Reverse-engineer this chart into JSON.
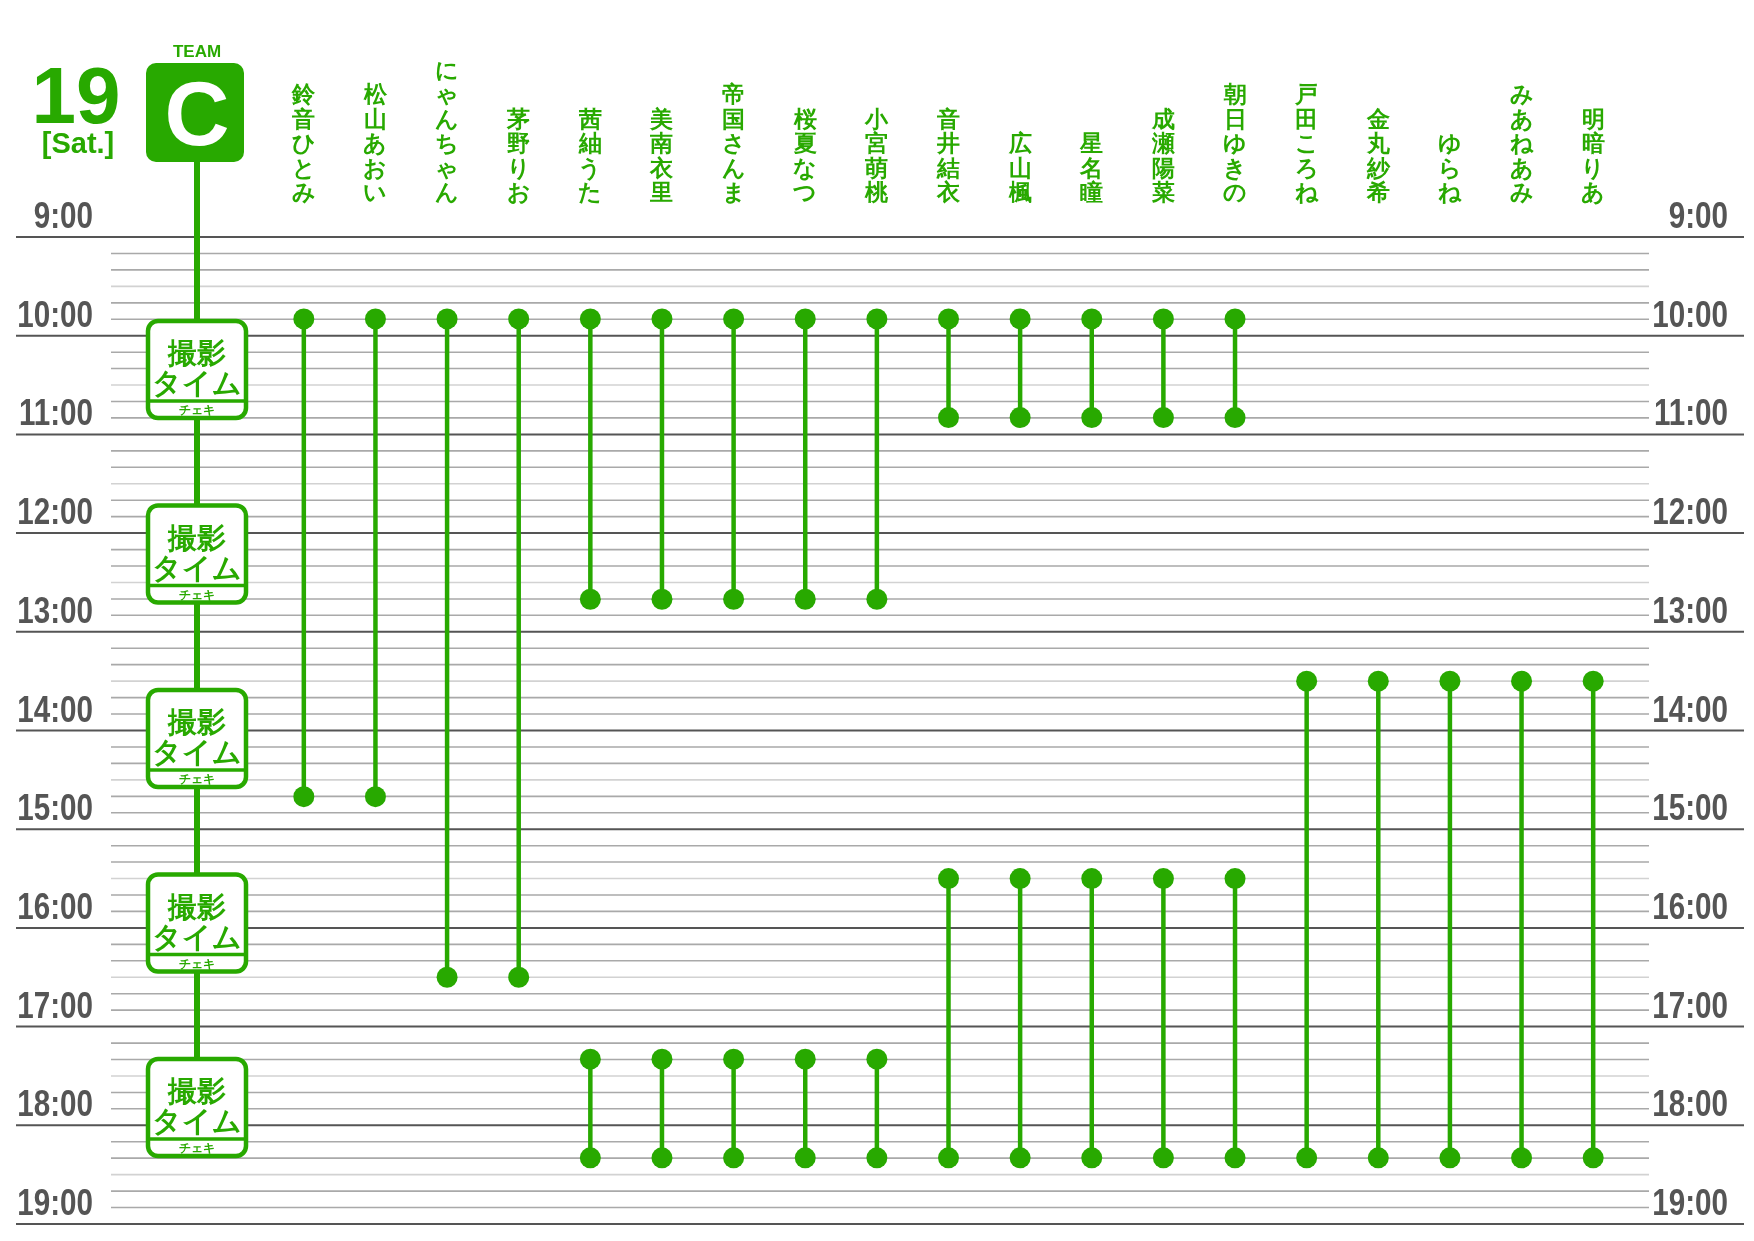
{
  "chart_data": {
    "type": "line",
    "title": "19",
    "subtitle": "[Sat.]",
    "categories": [
      "鈴音ひとみ",
      "松山あおい",
      "にゃんちゃん",
      "茅野りお",
      "茜紬うた",
      "美南衣里",
      "帝国さんま",
      "桜夏なつ",
      "小宮萌桃",
      "音井結衣",
      "広山楓",
      "星名瞳",
      "成瀬陽菜",
      "朝日ゆきの",
      "戸田ころね",
      "金丸紗希",
      "ゆらね",
      "みあねあみ",
      "明暗りあ"
    ],
    "series": [
      {
        "color": "#28a900",
        "x": [
          "鈴音ひとみ",
          "鈴音ひとみ"
        ],
        "values": [
          9.83,
          14.67
        ]
      },
      {
        "color": "#28a900",
        "x": [
          "松山あおい",
          "松山あおい"
        ],
        "values": [
          9.83,
          14.67
        ]
      },
      {
        "color": "#28a900",
        "x": [
          "にゃんちゃん",
          "にゃんちゃん"
        ],
        "values": [
          9.83,
          16.5
        ]
      },
      {
        "color": "#28a900",
        "x": [
          "茅野りお",
          "茅野りお"
        ],
        "values": [
          9.83,
          16.5
        ]
      },
      {
        "color": "#28a900",
        "x": [
          "茜紬うた",
          "茜紬うた"
        ],
        "values": [
          9.83,
          12.67
        ]
      },
      {
        "color": "#28a900",
        "x": [
          "美南衣里",
          "美南衣里"
        ],
        "values": [
          9.83,
          12.67
        ]
      },
      {
        "color": "#28a900",
        "x": [
          "帝国さんま",
          "帝国さんま"
        ],
        "values": [
          9.83,
          12.67
        ]
      },
      {
        "color": "#28a900",
        "x": [
          "桜夏なつ",
          "桜夏なつ"
        ],
        "values": [
          9.83,
          12.67
        ]
      },
      {
        "color": "#28a900",
        "x": [
          "小宮萌桃",
          "小宮萌桃"
        ],
        "values": [
          9.83,
          12.67
        ]
      },
      {
        "color": "#28a900",
        "x": [
          "音井結衣",
          "音井結衣"
        ],
        "values": [
          9.83,
          10.83
        ]
      },
      {
        "color": "#28a900",
        "x": [
          "広山楓",
          "広山楓"
        ],
        "values": [
          9.83,
          10.83
        ]
      },
      {
        "color": "#28a900",
        "x": [
          "星名瞳",
          "星名瞳"
        ],
        "values": [
          9.83,
          10.83
        ]
      },
      {
        "color": "#28a900",
        "x": [
          "成瀬陽菜",
          "成瀬陽菜"
        ],
        "values": [
          9.83,
          10.83
        ]
      },
      {
        "color": "#28a900",
        "x": [
          "朝日ゆきの",
          "朝日ゆきの"
        ],
        "values": [
          9.83,
          10.83
        ]
      },
      {
        "color": "#28a900",
        "x": [
          "戸田ころね",
          "戸田ころね"
        ],
        "values": [
          13.5,
          18.33
        ]
      },
      {
        "color": "#28a900",
        "x": [
          "金丸紗希",
          "金丸紗希"
        ],
        "values": [
          13.5,
          18.33
        ]
      },
      {
        "color": "#28a900",
        "x": [
          "ゆらね",
          "ゆらね"
        ],
        "values": [
          13.5,
          18.33
        ]
      },
      {
        "color": "#28a900",
        "x": [
          "みあねあみ",
          "みあねあみ"
        ],
        "values": [
          13.5,
          18.33
        ]
      },
      {
        "color": "#28a900",
        "x": [
          "明暗りあ",
          "明暗りあ"
        ],
        "values": [
          13.5,
          18.33
        ]
      },
      {
        "color": "#28a900",
        "x": [
          "茜紬うた",
          "茜紬うた"
        ],
        "values": [
          17.33,
          18.33
        ]
      },
      {
        "color": "#28a900",
        "x": [
          "美南衣里",
          "美南衣里"
        ],
        "values": [
          17.33,
          18.33
        ]
      },
      {
        "color": "#28a900",
        "x": [
          "帝国さんま",
          "帝国さんま"
        ],
        "values": [
          17.33,
          18.33
        ]
      },
      {
        "color": "#28a900",
        "x": [
          "桜夏なつ",
          "桜夏なつ"
        ],
        "values": [
          17.33,
          18.33
        ]
      },
      {
        "color": "#28a900",
        "x": [
          "小宮萌桃",
          "小宮萌桃"
        ],
        "values": [
          17.33,
          18.33
        ]
      },
      {
        "color": "#28a900",
        "x": [
          "音井結衣",
          "音井結衣"
        ],
        "values": [
          15.5,
          18.33
        ]
      },
      {
        "color": "#28a900",
        "x": [
          "広山楓",
          "広山楓"
        ],
        "values": [
          15.5,
          18.33
        ]
      },
      {
        "color": "#28a900",
        "x": [
          "星名瞳",
          "星名瞳"
        ],
        "values": [
          15.5,
          18.33
        ]
      },
      {
        "color": "#28a900",
        "x": [
          "成瀬陽菜",
          "成瀬陽菜"
        ],
        "values": [
          15.5,
          18.33
        ]
      },
      {
        "color": "#28a900",
        "x": [
          "朝日ゆきの",
          "朝日ゆきの"
        ],
        "values": [
          15.5,
          18.33
        ]
      }
    ],
    "ylim": [
      19,
      9
    ],
    "yticks": [
      {
        "value": 9,
        "label": "9:00"
      },
      {
        "value": 9.167,
        "label": null
      },
      {
        "value": 9.333,
        "label": null
      },
      {
        "value": 9.5,
        "label": null
      },
      {
        "value": 9.667,
        "label": null
      },
      {
        "value": 9.833,
        "label": null
      },
      {
        "value": 10,
        "label": "10:00"
      },
      {
        "value": 10.167,
        "label": null
      },
      {
        "value": 10.333,
        "label": null
      },
      {
        "value": 10.5,
        "label": null
      },
      {
        "value": 10.667,
        "label": null
      },
      {
        "value": 10.833,
        "label": null
      },
      {
        "value": 11,
        "label": "11:00"
      },
      {
        "value": 11.167,
        "label": null
      },
      {
        "value": 11.333,
        "label": null
      },
      {
        "value": 11.5,
        "label": null
      },
      {
        "value": 11.667,
        "label": null
      },
      {
        "value": 11.833,
        "label": null
      },
      {
        "value": 12,
        "label": "12:00"
      },
      {
        "value": 12.167,
        "label": null
      },
      {
        "value": 12.333,
        "label": null
      },
      {
        "value": 12.5,
        "label": null
      },
      {
        "value": 12.667,
        "label": null
      },
      {
        "value": 12.833,
        "label": null
      },
      {
        "value": 13,
        "label": "13:00"
      },
      {
        "value": 13.167,
        "label": null
      },
      {
        "value": 13.333,
        "label": null
      },
      {
        "value": 13.5,
        "label": null
      },
      {
        "value": 13.667,
        "label": null
      },
      {
        "value": 13.833,
        "label": null
      },
      {
        "value": 14,
        "label": "14:00"
      },
      {
        "value": 14.167,
        "label": null
      },
      {
        "value": 14.333,
        "label": null
      },
      {
        "value": 14.5,
        "label": null
      },
      {
        "value": 14.667,
        "label": null
      },
      {
        "value": 14.833,
        "label": null
      },
      {
        "value": 15,
        "label": "15:00"
      },
      {
        "value": 15.167,
        "label": null
      },
      {
        "value": 15.333,
        "label": null
      },
      {
        "value": 15.5,
        "label": null
      },
      {
        "value": 15.667,
        "label": null
      },
      {
        "value": 15.833,
        "label": null
      },
      {
        "value": 16,
        "label": "16:00"
      },
      {
        "value": 16.167,
        "label": null
      },
      {
        "value": 16.333,
        "label": null
      },
      {
        "value": 16.5,
        "label": null
      },
      {
        "value": 16.667,
        "label": null
      },
      {
        "value": 16.833,
        "label": null
      },
      {
        "value": 17,
        "label": "17:00"
      },
      {
        "value": 17.167,
        "label": null
      },
      {
        "value": 17.333,
        "label": null
      },
      {
        "value": 17.5,
        "label": null
      },
      {
        "value": 17.667,
        "label": null
      },
      {
        "value": 17.833,
        "label": null
      },
      {
        "value": 18,
        "label": "18:00"
      },
      {
        "value": 18.167,
        "label": null
      },
      {
        "value": 18.333,
        "label": null
      },
      {
        "value": 18.5,
        "label": null
      },
      {
        "value": 18.667,
        "label": null
      },
      {
        "value": 18.833,
        "label": null
      },
      {
        "value": 19,
        "label": "19:00"
      }
    ],
    "y2lim": [
      19,
      9
    ],
    "y2ticks": [
      {
        "value": 9,
        "label": "9:00"
      },
      {
        "value": 10,
        "label": "10:00"
      },
      {
        "value": 11,
        "label": "11:00"
      },
      {
        "value": 12,
        "label": "12:00"
      },
      {
        "value": 13,
        "label": "13:00"
      },
      {
        "value": 14,
        "label": "14:00"
      },
      {
        "value": 15,
        "label": "15:00"
      },
      {
        "value": 16,
        "label": "16:00"
      },
      {
        "value": 17,
        "label": "17:00"
      },
      {
        "value": 18,
        "label": "18:00"
      },
      {
        "value": 19,
        "label": "19:00"
      }
    ],
    "grid": "y",
    "marker": "circle",
    "annotations": [
      "TEAM",
      "C",
      "撮影タイム",
      "チェキ",
      "撮影タイム",
      "チェキ",
      "撮影タイム",
      "チェキ",
      "撮影タイム",
      "チェキ",
      "撮影タイム",
      "チェキ"
    ]
  }
}
